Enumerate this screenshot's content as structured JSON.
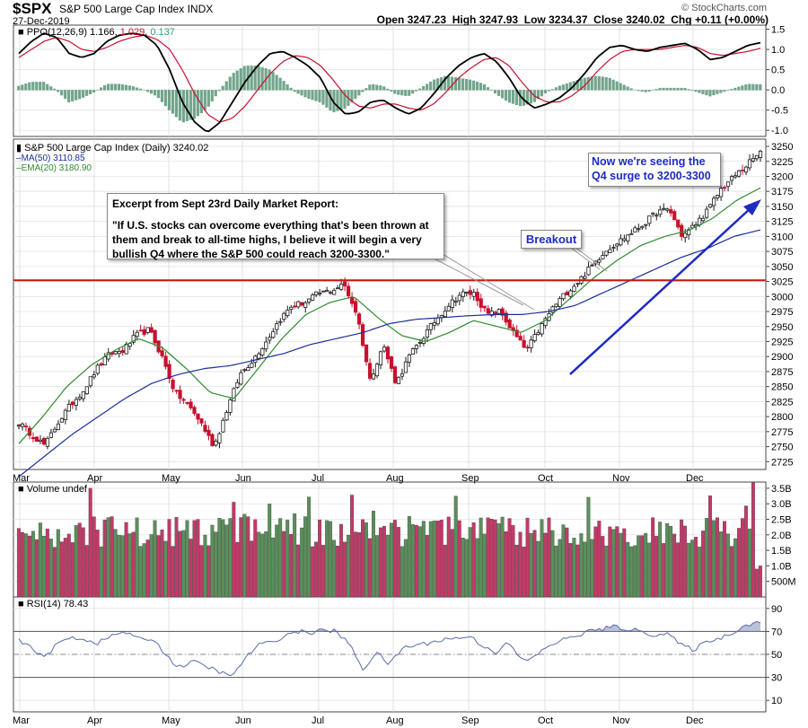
{
  "header": {
    "symbol": "$SPX",
    "name": "S&P 500 Large Cap Index",
    "exchange": "INDX",
    "date": "27-Dec-2019",
    "open_label": "Open",
    "open": "3247.23",
    "high_label": "High",
    "high": "3247.93",
    "low_label": "Low",
    "low": "3234.37",
    "close_label": "Close",
    "close": "3240.02",
    "chg_label": "Chg",
    "chg": "+0.11 (+0.00%)",
    "credit": "© StockCharts.com"
  },
  "colors": {
    "up": "#2e7d32",
    "down": "#c8102e",
    "ma50": "#1a2e9e",
    "ema20": "#2e8b2e",
    "ppo": "#000000",
    "signal": "#c8102e",
    "hist": "#4f8f6f",
    "volume_up": "#5a8f5a",
    "volume_down": "#c23a68",
    "rsi": "#5a6aa8",
    "resistance": "#d01010",
    "arrow": "#1d2bc4"
  },
  "chart_data": [
    {
      "type": "line",
      "panel": "PPO",
      "legend": {
        "label": "PPO(12,26,9)",
        "ppo": "1.166",
        "signal": "1.029",
        "hist": "0.137"
      },
      "y_ticks": [
        "1.5",
        "1.0",
        "0.5",
        "0.0",
        "-0.5",
        "-1.0"
      ],
      "ylim": [
        -1.15,
        1.6
      ],
      "series": [
        {
          "name": "PPO",
          "values": [
            0.9,
            1.2,
            1.4,
            1.3,
            0.9,
            0.8,
            0.9,
            1.2,
            1.35,
            1.4,
            1.35,
            1.1,
            0.5,
            -0.3,
            -0.8,
            -1.05,
            -0.8,
            -0.3,
            0.2,
            0.6,
            0.9,
            0.95,
            0.8,
            0.6,
            0.3,
            -0.3,
            -0.6,
            -0.55,
            -0.3,
            -0.25,
            -0.45,
            -0.6,
            -0.45,
            -0.1,
            0.3,
            0.6,
            0.8,
            0.9,
            0.7,
            0.3,
            -0.2,
            -0.45,
            -0.35,
            -0.2,
            0.05,
            0.4,
            0.8,
            1.05,
            1.1,
            1.0,
            0.95,
            1.05,
            1.1,
            1.15,
            1.0,
            0.75,
            0.8,
            0.95,
            1.1,
            1.166
          ]
        },
        {
          "name": "Signal",
          "values": [
            0.8,
            1.0,
            1.2,
            1.3,
            1.2,
            1.0,
            0.95,
            1.05,
            1.2,
            1.3,
            1.35,
            1.25,
            1.0,
            0.5,
            -0.1,
            -0.6,
            -0.8,
            -0.7,
            -0.4,
            0.0,
            0.4,
            0.7,
            0.85,
            0.8,
            0.6,
            0.25,
            -0.15,
            -0.4,
            -0.45,
            -0.35,
            -0.35,
            -0.45,
            -0.5,
            -0.35,
            -0.05,
            0.3,
            0.55,
            0.75,
            0.8,
            0.6,
            0.2,
            -0.15,
            -0.3,
            -0.3,
            -0.15,
            0.1,
            0.45,
            0.75,
            0.95,
            1.0,
            1.0,
            1.0,
            1.05,
            1.1,
            1.05,
            0.9,
            0.85,
            0.9,
            0.95,
            1.029
          ]
        }
      ]
    },
    {
      "type": "candlestick",
      "panel": "Price",
      "legend": {
        "title": "S&P 500 Large Cap Index (Daily)",
        "last": "3240.02",
        "ma50_label": "MA(50)",
        "ma50": "3110.85",
        "ema20_label": "EMA(20)",
        "ema20": "3180.90"
      },
      "y_ticks": [
        "3250",
        "3225",
        "3200",
        "3175",
        "3150",
        "3125",
        "3100",
        "3075",
        "3050",
        "3025",
        "3000",
        "2975",
        "2950",
        "2925",
        "2900",
        "2875",
        "2850",
        "2825",
        "2800",
        "2775",
        "2750",
        "2725"
      ],
      "ylim": [
        2712,
        3262
      ],
      "resistance": 3027,
      "close_anchor_months": [
        "Mar",
        "Apr",
        "May",
        "Jun",
        "Jul",
        "Aug",
        "Sep",
        "Oct",
        "Nov",
        "Dec"
      ],
      "close_anchors": [
        2790,
        2770,
        2752,
        2790,
        2820,
        2845,
        2880,
        2905,
        2910,
        2935,
        2945,
        2900,
        2840,
        2820,
        2790,
        2750,
        2812,
        2870,
        2895,
        2925,
        2960,
        2985,
        2990,
        3005,
        3010,
        3020,
        2970,
        2860,
        2920,
        2855,
        2900,
        2930,
        2960,
        2985,
        3005,
        3005,
        2970,
        2975,
        2940,
        2910,
        2945,
        2980,
        3005,
        3025,
        3050,
        3075,
        3090,
        3105,
        3120,
        3140,
        3145,
        3100,
        3120,
        3145,
        3180,
        3200,
        3220,
        3240
      ],
      "ma50_values": [
        2700,
        2735,
        2770,
        2800,
        2830,
        2855,
        2870,
        2880,
        2885,
        2895,
        2905,
        2920,
        2930,
        2940,
        2955,
        2962,
        2965,
        2968,
        2970,
        2970,
        2975,
        2985,
        3005,
        3025,
        3045,
        3065,
        3080,
        3100,
        3110.85
      ],
      "ema20_values": [
        2755,
        2800,
        2850,
        2885,
        2910,
        2930,
        2915,
        2880,
        2840,
        2830,
        2880,
        2930,
        2970,
        2990,
        3000,
        2965,
        2935,
        2925,
        2940,
        2960,
        2950,
        2940,
        2960,
        2995,
        3030,
        3060,
        3085,
        3100,
        3110,
        3130,
        3160,
        3180.9
      ]
    },
    {
      "type": "bar",
      "panel": "Volume",
      "legend": {
        "label": "Volume undef"
      },
      "y_ticks": [
        "3.5B",
        "3.0B",
        "2.5B",
        "2.0B",
        "1.5B",
        "1.0B",
        "500M"
      ],
      "ylim": [
        0,
        3.7
      ]
    },
    {
      "type": "line",
      "panel": "RSI",
      "legend": {
        "label": "RSI(14)",
        "value": "78.43"
      },
      "y_ticks": [
        "90",
        "70",
        "50",
        "30",
        "10"
      ],
      "ylim": [
        0,
        100
      ],
      "values": [
        62,
        55,
        48,
        60,
        65,
        63,
        60,
        66,
        70,
        63,
        64,
        52,
        38,
        44,
        40,
        36,
        30,
        45,
        58,
        60,
        66,
        70,
        69,
        71,
        70,
        58,
        37,
        52,
        41,
        56,
        58,
        60,
        63,
        64,
        66,
        58,
        52,
        60,
        44,
        48,
        58,
        62,
        66,
        70,
        72,
        74,
        72,
        70,
        67,
        68,
        58,
        54,
        62,
        64,
        70,
        76,
        78.43
      ]
    }
  ],
  "x_axis": {
    "months": [
      "Mar",
      "Apr",
      "May",
      "Jun",
      "Jul",
      "Aug",
      "Sep",
      "Oct",
      "Nov",
      "Dec"
    ]
  },
  "annotations": {
    "excerpt_title": "Excerpt from Sept 23rd Daily Market Report:",
    "excerpt_body": "\"If U.S. stocks can overcome everything that's been thrown at them and break to all-time highs, I believe it will begin a very bullish Q4 where the S&P 500 could reach 3200-3300.\"",
    "breakout": "Breakout",
    "surge_line1": "Now we're seeing the",
    "surge_line2": "Q4 surge to 3200-3300"
  }
}
